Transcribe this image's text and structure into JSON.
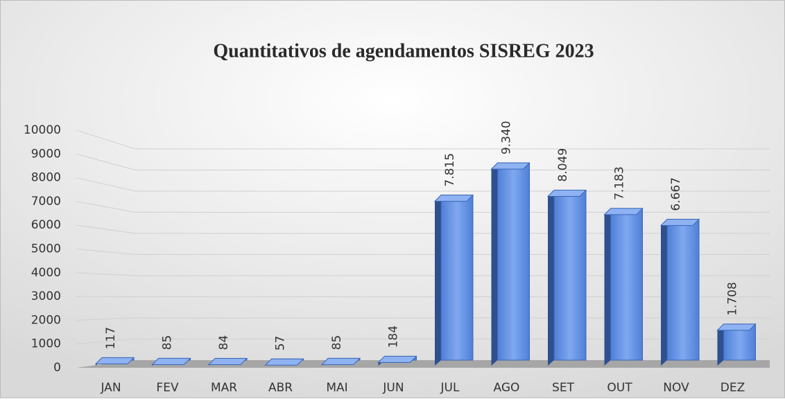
{
  "chart_data": {
    "type": "bar",
    "title": "Quantitativos de agendamentos SISREG 2023",
    "categories": [
      "JAN",
      "FEV",
      "MAR",
      "ABR",
      "MAI",
      "JUN",
      "JUL",
      "AGO",
      "SET",
      "OUT",
      "NOV",
      "DEZ"
    ],
    "values": [
      117,
      85,
      84,
      57,
      85,
      184,
      7815,
      9340,
      8049,
      7183,
      6667,
      1708
    ],
    "value_labels": [
      "117",
      "85",
      "84",
      "57",
      "85",
      "184",
      "7.815",
      "9.340",
      "8.049",
      "7.183",
      "6.667",
      "1.708"
    ],
    "color": "#5b8ee6",
    "ylim": [
      0,
      10000
    ],
    "yticks": [
      0,
      1000,
      2000,
      3000,
      4000,
      5000,
      6000,
      7000,
      8000,
      9000,
      10000
    ],
    "grid": true
  }
}
